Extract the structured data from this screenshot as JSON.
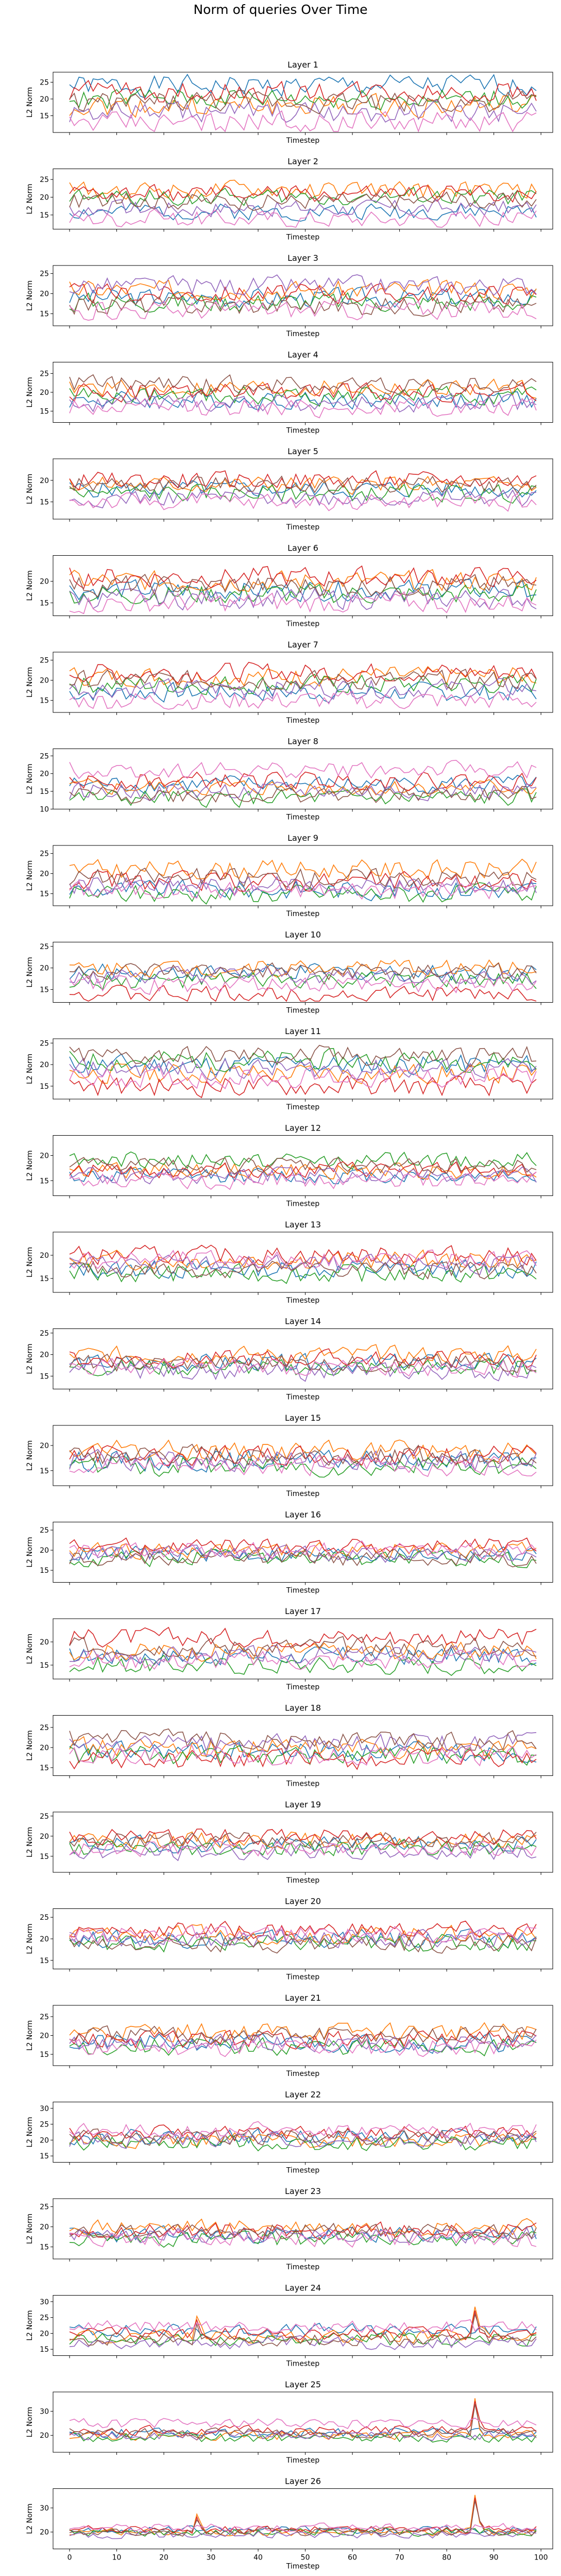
{
  "figure": {
    "title": "Norm of queries Over Time"
  },
  "style": {
    "colors": [
      "#1f77b4",
      "#ff7f0e",
      "#2ca02c",
      "#d62728",
      "#9467bd",
      "#8c564b",
      "#e377c2",
      "#7f7f7f"
    ],
    "grid": false,
    "legend": "none"
  },
  "chart_data": [
    {
      "type": "line",
      "title": "Layer 1",
      "xlabel": "Timestep",
      "ylabel": "L2 Norm",
      "xlim": [
        -3.5,
        102.5
      ],
      "ylim": [
        10,
        28
      ],
      "yticks": [
        15,
        20,
        25
      ],
      "xticks": [],
      "base": [
        24,
        18,
        20,
        22,
        16,
        19,
        13
      ],
      "amp": 4,
      "seed": 1,
      "spikes": []
    },
    {
      "type": "line",
      "title": "Layer 2",
      "xlabel": "Timestep",
      "ylabel": "L2 Norm",
      "xlim": [
        -3.5,
        102.5
      ],
      "ylim": [
        11,
        28
      ],
      "yticks": [
        15,
        20,
        25
      ],
      "xticks": [],
      "base": [
        16,
        22,
        20,
        21,
        17,
        19,
        14
      ],
      "amp": 3,
      "seed": 2,
      "spikes": []
    },
    {
      "type": "line",
      "title": "Layer 3",
      "xlabel": "Timestep",
      "ylabel": "L2 Norm",
      "xlim": [
        -3.5,
        102.5
      ],
      "ylim": [
        12,
        27
      ],
      "yticks": [
        15,
        20,
        25
      ],
      "xticks": [],
      "base": [
        19,
        21,
        18,
        20,
        22,
        17,
        16
      ],
      "amp": 3,
      "seed": 3,
      "spikes": []
    },
    {
      "type": "line",
      "title": "Layer 4",
      "xlabel": "Timestep",
      "ylabel": "L2 Norm",
      "xlim": [
        -3.5,
        102.5
      ],
      "ylim": [
        12,
        28
      ],
      "yticks": [
        15,
        20,
        25
      ],
      "xticks": [],
      "base": [
        18,
        21,
        19,
        20,
        17,
        22,
        16
      ],
      "amp": 3,
      "seed": 4,
      "spikes": []
    },
    {
      "type": "line",
      "title": "Layer 5",
      "xlabel": "Timestep",
      "ylabel": "L2 Norm",
      "xlim": [
        -3.5,
        102.5
      ],
      "ylim": [
        11,
        25
      ],
      "yticks": [
        15,
        20
      ],
      "xticks": [],
      "base": [
        18,
        19,
        17,
        20,
        16,
        19,
        15
      ],
      "amp": 2.5,
      "seed": 5,
      "spikes": []
    },
    {
      "type": "line",
      "title": "Layer 6",
      "xlabel": "Timestep",
      "ylabel": "L2 Norm",
      "xlim": [
        -3.5,
        102.5
      ],
      "ylim": [
        12,
        26
      ],
      "yticks": [
        15,
        20
      ],
      "xticks": [],
      "base": [
        18,
        20,
        17,
        21,
        16,
        19,
        15
      ],
      "amp": 3,
      "seed": 6,
      "spikes": []
    },
    {
      "type": "line",
      "title": "Layer 7",
      "xlabel": "Timestep",
      "ylabel": "L2 Norm",
      "xlim": [
        -3.5,
        102.5
      ],
      "ylim": [
        12,
        27
      ],
      "yticks": [
        15,
        20,
        25
      ],
      "xticks": [],
      "base": [
        17,
        21,
        19,
        22,
        18,
        20,
        15
      ],
      "amp": 3,
      "seed": 7,
      "spikes": []
    },
    {
      "type": "line",
      "title": "Layer 8",
      "xlabel": "Timestep",
      "ylabel": "L2 Norm",
      "xlim": [
        -3.5,
        102.5
      ],
      "ylim": [
        10,
        27
      ],
      "yticks": [
        10,
        15,
        20,
        25
      ],
      "xticks": [],
      "base": [
        17,
        16,
        13,
        18,
        15,
        14,
        21
      ],
      "amp": 3,
      "seed": 8,
      "spikes": []
    },
    {
      "type": "line",
      "title": "Layer 9",
      "xlabel": "Timestep",
      "ylabel": "L2 Norm",
      "xlim": [
        -3.5,
        102.5
      ],
      "ylim": [
        12,
        27
      ],
      "yticks": [
        15,
        20,
        25
      ],
      "xticks": [],
      "base": [
        16,
        21,
        15,
        18,
        17,
        19,
        16
      ],
      "amp": 3,
      "seed": 9,
      "spikes": []
    },
    {
      "type": "line",
      "title": "Layer 10",
      "xlabel": "Timestep",
      "ylabel": "L2 Norm",
      "xlim": [
        -3.5,
        102.5
      ],
      "ylim": [
        12,
        26
      ],
      "yticks": [
        15,
        20,
        25
      ],
      "xticks": [],
      "base": [
        19,
        20,
        17,
        14,
        18,
        19,
        16
      ],
      "amp": 2.5,
      "seed": 10,
      "spikes": []
    },
    {
      "type": "line",
      "title": "Layer 11",
      "xlabel": "Timestep",
      "ylabel": "L2 Norm",
      "xlim": [
        -3.5,
        102.5
      ],
      "ylim": [
        12,
        26
      ],
      "yticks": [
        15,
        20,
        25
      ],
      "xticks": [],
      "base": [
        20,
        18,
        21,
        15,
        19,
        22,
        17
      ],
      "amp": 3,
      "seed": 11,
      "spikes": []
    },
    {
      "type": "line",
      "title": "Layer 12",
      "xlabel": "Timestep",
      "ylabel": "L2 Norm",
      "xlim": [
        -3.5,
        102.5
      ],
      "ylim": [
        12,
        24
      ],
      "yticks": [
        15,
        20
      ],
      "xticks": [],
      "base": [
        16,
        17,
        19,
        17,
        16,
        18,
        15
      ],
      "amp": 2,
      "seed": 12,
      "spikes": []
    },
    {
      "type": "line",
      "title": "Layer 13",
      "xlabel": "Timestep",
      "ylabel": "L2 Norm",
      "xlim": [
        -3.5,
        102.5
      ],
      "ylim": [
        12,
        25
      ],
      "yticks": [
        15,
        20
      ],
      "xticks": [],
      "base": [
        17,
        19,
        16,
        20,
        18,
        17,
        19
      ],
      "amp": 2.5,
      "seed": 13,
      "spikes": []
    },
    {
      "type": "line",
      "title": "Layer 14",
      "xlabel": "Timestep",
      "ylabel": "L2 Norm",
      "xlim": [
        -3.5,
        102.5
      ],
      "ylim": [
        12,
        26
      ],
      "yticks": [
        15,
        20,
        25
      ],
      "xticks": [],
      "base": [
        18,
        20,
        17,
        19,
        16,
        18,
        17
      ],
      "amp": 2.5,
      "seed": 14,
      "spikes": []
    },
    {
      "type": "line",
      "title": "Layer 15",
      "xlabel": "Timestep",
      "ylabel": "L2 Norm",
      "xlim": [
        -3.5,
        102.5
      ],
      "ylim": [
        12,
        24
      ],
      "yticks": [
        15,
        20
      ],
      "xticks": [],
      "base": [
        17,
        19,
        16,
        18,
        17,
        18,
        16
      ],
      "amp": 2.5,
      "seed": 15,
      "spikes": []
    },
    {
      "type": "line",
      "title": "Layer 16",
      "xlabel": "Timestep",
      "ylabel": "L2 Norm",
      "xlim": [
        -3.5,
        102.5
      ],
      "ylim": [
        12,
        27
      ],
      "yticks": [
        15,
        20,
        25
      ],
      "xticks": [],
      "base": [
        19,
        20,
        18,
        21,
        19,
        18,
        20
      ],
      "amp": 2.5,
      "seed": 16,
      "spikes": []
    },
    {
      "type": "line",
      "title": "Layer 17",
      "xlabel": "Timestep",
      "ylabel": "L2 Norm",
      "xlim": [
        -3.5,
        102.5
      ],
      "ylim": [
        12,
        25
      ],
      "yticks": [
        15,
        20
      ],
      "xticks": [],
      "base": [
        17,
        18,
        15,
        21,
        17,
        19,
        16
      ],
      "amp": 2.5,
      "seed": 17,
      "spikes": []
    },
    {
      "type": "line",
      "title": "Layer 18",
      "xlabel": "Timestep",
      "ylabel": "L2 Norm",
      "xlim": [
        -3.5,
        102.5
      ],
      "ylim": [
        13,
        28
      ],
      "yticks": [
        15,
        20,
        25
      ],
      "xticks": [],
      "base": [
        19,
        20,
        18,
        17,
        21,
        22,
        18
      ],
      "amp": 3,
      "seed": 18,
      "spikes": []
    },
    {
      "type": "line",
      "title": "Layer 19",
      "xlabel": "Timestep",
      "ylabel": "L2 Norm",
      "xlim": [
        -3.5,
        102.5
      ],
      "ylim": [
        11,
        26
      ],
      "yticks": [
        15,
        20,
        25
      ],
      "xticks": [],
      "base": [
        18,
        19,
        17,
        20,
        16,
        19,
        17
      ],
      "amp": 2.5,
      "seed": 19,
      "spikes": []
    },
    {
      "type": "line",
      "title": "Layer 20",
      "xlabel": "Timestep",
      "ylabel": "L2 Norm",
      "xlim": [
        -3.5,
        102.5
      ],
      "ylim": [
        13,
        27
      ],
      "yticks": [
        15,
        20,
        25
      ],
      "xticks": [],
      "base": [
        20,
        21,
        19,
        22,
        20,
        19,
        21
      ],
      "amp": 2.5,
      "seed": 20,
      "spikes": []
    },
    {
      "type": "line",
      "title": "Layer 21",
      "xlabel": "Timestep",
      "ylabel": "L2 Norm",
      "xlim": [
        -3.5,
        102.5
      ],
      "ylim": [
        12,
        28
      ],
      "yticks": [
        15,
        20,
        25
      ],
      "xticks": [],
      "base": [
        18,
        21,
        17,
        19,
        18,
        20,
        17
      ],
      "amp": 3,
      "seed": 21,
      "spikes": []
    },
    {
      "type": "line",
      "title": "Layer 22",
      "xlabel": "Timestep",
      "ylabel": "L2 Norm",
      "xlim": [
        -3.5,
        102.5
      ],
      "ylim": [
        13,
        32
      ],
      "yticks": [
        15,
        20,
        25,
        30
      ],
      "xticks": [],
      "base": [
        21,
        20,
        19,
        22,
        20,
        21,
        23
      ],
      "amp": 3,
      "seed": 22,
      "spikes": []
    },
    {
      "type": "line",
      "title": "Layer 23",
      "xlabel": "Timestep",
      "ylabel": "L2 Norm",
      "xlim": [
        -3.5,
        102.5
      ],
      "ylim": [
        12,
        27
      ],
      "yticks": [
        15,
        20,
        25
      ],
      "xticks": [],
      "base": [
        18,
        20,
        17,
        19,
        18,
        19,
        17
      ],
      "amp": 2.5,
      "seed": 23,
      "spikes": []
    },
    {
      "type": "line",
      "title": "Layer 24",
      "xlabel": "Timestep",
      "ylabel": "L2 Norm",
      "xlim": [
        -3.5,
        102.5
      ],
      "ylim": [
        13,
        32
      ],
      "yticks": [
        15,
        20,
        25,
        30
      ],
      "xticks": [],
      "base": [
        21,
        19,
        18,
        20,
        17,
        18,
        22
      ],
      "amp": 2.5,
      "seed": 24,
      "spikes": [
        [
          27,
          26
        ],
        [
          86,
          29
        ]
      ]
    },
    {
      "type": "line",
      "title": "Layer 25",
      "xlabel": "Timestep",
      "ylabel": "L2 Norm",
      "xlim": [
        -3.5,
        102.5
      ],
      "ylim": [
        13,
        38
      ],
      "yticks": [
        20,
        30
      ],
      "xticks": [],
      "base": [
        21,
        20,
        19,
        22,
        20,
        21,
        25
      ],
      "amp": 2.5,
      "seed": 25,
      "spikes": [
        [
          86,
          36
        ]
      ]
    },
    {
      "type": "line",
      "title": "Layer 26",
      "xlabel": "Timestep",
      "ylabel": "L2 Norm",
      "xlim": [
        -3.5,
        102.5
      ],
      "ylim": [
        13,
        38
      ],
      "yticks": [
        20,
        30
      ],
      "xticks": [
        0,
        10,
        20,
        30,
        40,
        50,
        60,
        70,
        80,
        90,
        100
      ],
      "base": [
        21,
        20,
        20,
        21,
        19,
        20,
        22
      ],
      "amp": 2,
      "seed": 26,
      "spikes": [
        [
          27,
          28
        ],
        [
          86,
          36
        ]
      ]
    }
  ]
}
